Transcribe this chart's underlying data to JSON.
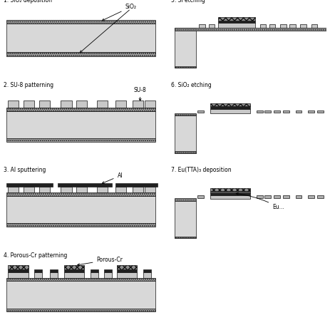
{
  "labels": {
    "step1": "1. SiO₂ deposition",
    "step2": "2. SU-8 patterning",
    "step3": "3. Al sputtering",
    "step4": "4. Porous-Cr patterning",
    "step5": "5. Si etching",
    "step6": "6. SiO₂ etching",
    "step7": "7. Eu(TTA)₃ deposition"
  },
  "colors": {
    "si_substrate": "#d8d8d8",
    "sio2": "#b0b0b0",
    "su8": "#c8c8c8",
    "al": "#202020",
    "porous_cr": "#909090",
    "eu": "#505050",
    "white": "#ffffff",
    "black": "#101010",
    "light_bg": "#f5f5f5"
  }
}
